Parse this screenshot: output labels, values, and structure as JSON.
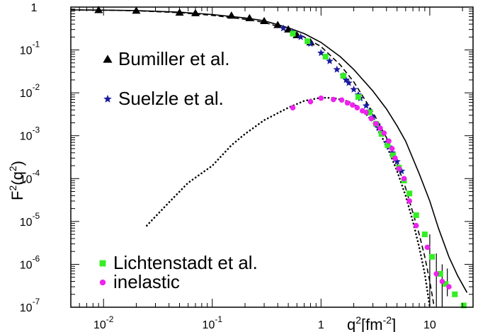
{
  "chart_data": {
    "type": "scatter",
    "x_scale": "log",
    "y_scale": "log",
    "xlim": [
      0.005,
      25
    ],
    "ylim": [
      1e-07,
      1
    ],
    "xlabel": {
      "base": "q",
      "sup": "2",
      "unit": "[fm",
      "unit_sup": "-2",
      "unit_end": "]"
    },
    "ylabel": {
      "pre": "F",
      "sup1": "2",
      "mid": "(q",
      "sup2": "2",
      "end": ")"
    },
    "x_ticks": [
      {
        "value": 0.01,
        "base": "10",
        "exp": "-2"
      },
      {
        "value": 0.1,
        "base": "10",
        "exp": "-1"
      },
      {
        "value": 1,
        "base": "1",
        "exp": ""
      },
      {
        "value": 10,
        "base": "10",
        "exp": ""
      }
    ],
    "y_ticks": [
      {
        "value": 1,
        "base": "1",
        "exp": ""
      },
      {
        "value": 0.1,
        "base": "10",
        "exp": "-1"
      },
      {
        "value": 0.01,
        "base": "10",
        "exp": "-2"
      },
      {
        "value": 0.001,
        "base": "10",
        "exp": "-3"
      },
      {
        "value": 0.0001,
        "base": "10",
        "exp": "-4"
      },
      {
        "value": 1e-05,
        "base": "10",
        "exp": "-5"
      },
      {
        "value": 1e-06,
        "base": "10",
        "exp": "-6"
      },
      {
        "value": 1e-07,
        "base": "10",
        "exp": "-7"
      }
    ],
    "legend": [
      {
        "label": "Bumiller et al.",
        "marker": "triangle",
        "color": "#000000"
      },
      {
        "label": "Suelzle et al.",
        "marker": "star",
        "color": "#1a1aa0"
      },
      {
        "label": "Lichtenstadt et al.",
        "marker": "square",
        "color": "#33ee22"
      },
      {
        "label": "inelastic",
        "marker": "circle",
        "color": "#ee22ee"
      }
    ],
    "series": [
      {
        "name": "Bumiller et al.",
        "marker": "triangle",
        "color": "#000000",
        "points": [
          [
            0.009,
            0.85
          ],
          [
            0.02,
            0.82
          ],
          [
            0.05,
            0.74
          ],
          [
            0.07,
            0.72
          ],
          [
            0.15,
            0.63
          ],
          [
            0.22,
            0.55
          ],
          [
            0.3,
            0.47
          ],
          [
            0.4,
            0.38
          ],
          [
            0.5,
            0.3
          ],
          [
            0.6,
            0.22
          ],
          [
            0.8,
            0.15
          ]
        ]
      },
      {
        "name": "Suelzle et al.",
        "marker": "star",
        "color": "#1a1aa0",
        "points": [
          [
            0.45,
            0.32
          ],
          [
            0.55,
            0.26
          ],
          [
            0.65,
            0.2
          ],
          [
            0.8,
            0.14
          ],
          [
            1.0,
            0.085
          ],
          [
            1.2,
            0.055
          ],
          [
            1.4,
            0.035
          ],
          [
            1.6,
            0.025
          ],
          [
            1.8,
            0.017
          ],
          [
            2.0,
            0.012
          ],
          [
            2.3,
            0.0075
          ],
          [
            2.6,
            0.005
          ],
          [
            3.0,
            0.0027
          ],
          [
            3.3,
            0.0018
          ],
          [
            3.6,
            0.0012
          ],
          [
            4.0,
            0.0007
          ],
          [
            4.5,
            0.0004
          ],
          [
            5.0,
            0.00025
          ],
          [
            5.5,
            0.00015
          ],
          [
            1.7,
            0.02
          ],
          [
            2.2,
            0.009
          ],
          [
            2.8,
            0.0038
          ],
          [
            3.4,
            0.0015
          ],
          [
            4.2,
            0.00055
          ]
        ]
      },
      {
        "name": "Lichtenstadt et al.",
        "marker": "square",
        "color": "#33ee22",
        "points": [
          [
            0.55,
            0.24
          ],
          [
            0.75,
            0.16
          ],
          [
            1.1,
            0.07
          ],
          [
            1.6,
            0.025
          ],
          [
            2.2,
            0.008
          ],
          [
            2.8,
            0.0035
          ],
          [
            3.2,
            0.0019
          ],
          [
            3.6,
            0.0011
          ],
          [
            4.1,
            0.0006
          ],
          [
            4.6,
            0.00035
          ],
          [
            5.2,
            0.00018
          ],
          [
            5.8,
            9e-05
          ],
          [
            6.5,
            4.5e-05
          ],
          [
            7.5,
            1.4e-05
          ],
          [
            9.0,
            5e-06
          ],
          [
            10.5,
            1.5e-06
          ],
          [
            12.5,
            6e-07
          ],
          [
            14.0,
            3.5e-07
          ],
          [
            17.0,
            2e-07
          ],
          [
            20.5,
            1.1e-07
          ]
        ]
      },
      {
        "name": "inelastic",
        "marker": "circle",
        "color": "#ee22ee",
        "points": [
          [
            0.55,
            0.0045
          ],
          [
            0.8,
            0.0062
          ],
          [
            1.0,
            0.0075
          ],
          [
            1.3,
            0.007
          ],
          [
            1.55,
            0.0068
          ],
          [
            1.75,
            0.0058
          ],
          [
            1.95,
            0.0052
          ],
          [
            2.15,
            0.0045
          ],
          [
            2.4,
            0.0038
          ],
          [
            2.6,
            0.0035
          ],
          [
            2.9,
            0.0025
          ],
          [
            3.2,
            0.0019
          ],
          [
            3.5,
            0.0015
          ],
          [
            3.8,
            0.00115
          ],
          [
            4.2,
            0.00075
          ],
          [
            4.5,
            0.0005
          ],
          [
            4.8,
            0.0003
          ],
          [
            5.2,
            0.00017
          ],
          [
            5.8,
            0.0001
          ],
          [
            6.5,
            3e-05
          ],
          [
            7.5,
            8e-06
          ],
          [
            9.5,
            2.5e-06
          ],
          [
            11.5,
            6e-07
          ],
          [
            13.0,
            4e-07
          ],
          [
            15.0,
            3e-07
          ]
        ]
      }
    ],
    "curves": [
      {
        "style": "solid",
        "points": [
          [
            0.005,
            0.86
          ],
          [
            0.01,
            0.85
          ],
          [
            0.02,
            0.83
          ],
          [
            0.05,
            0.76
          ],
          [
            0.1,
            0.67
          ],
          [
            0.2,
            0.56
          ],
          [
            0.3,
            0.48
          ],
          [
            0.5,
            0.33
          ],
          [
            0.7,
            0.24
          ],
          [
            1.0,
            0.15
          ],
          [
            1.5,
            0.07
          ],
          [
            2.0,
            0.035
          ],
          [
            3.0,
            0.011
          ],
          [
            4.0,
            0.0042
          ],
          [
            5.0,
            0.0017
          ],
          [
            6.0,
            0.00075
          ],
          [
            8.0,
            0.00013
          ],
          [
            10.0,
            3e-05
          ],
          [
            12.0,
            7e-06
          ],
          [
            15.0,
            1.5e-06
          ],
          [
            18.0,
            5.5e-07
          ],
          [
            22.0,
            2.2e-07
          ]
        ]
      },
      {
        "style": "dashed",
        "points": [
          [
            0.005,
            0.86
          ],
          [
            0.01,
            0.85
          ],
          [
            0.02,
            0.82
          ],
          [
            0.05,
            0.74
          ],
          [
            0.1,
            0.64
          ],
          [
            0.2,
            0.52
          ],
          [
            0.3,
            0.44
          ],
          [
            0.5,
            0.3
          ],
          [
            0.7,
            0.2
          ],
          [
            1.0,
            0.12
          ],
          [
            1.5,
            0.045
          ],
          [
            2.0,
            0.018
          ],
          [
            3.0,
            0.0035
          ],
          [
            4.0,
            0.0009
          ],
          [
            5.0,
            0.00022
          ],
          [
            6.0,
            6e-05
          ],
          [
            7.0,
            1.6e-05
          ],
          [
            8.0,
            5e-06
          ],
          [
            9.0,
            1.5e-06
          ],
          [
            10.0,
            4e-07
          ],
          [
            11.0,
            1e-07
          ]
        ]
      },
      {
        "style": "dotted",
        "points": [
          [
            0.025,
            8e-06
          ],
          [
            0.04,
            2.8e-05
          ],
          [
            0.06,
            8e-05
          ],
          [
            0.1,
            0.0002
          ],
          [
            0.15,
            0.0006
          ],
          [
            0.2,
            0.0011
          ],
          [
            0.3,
            0.0023
          ],
          [
            0.5,
            0.0045
          ],
          [
            0.7,
            0.0065
          ],
          [
            1.0,
            0.0077
          ],
          [
            1.3,
            0.0076
          ],
          [
            1.7,
            0.0065
          ],
          [
            2.0,
            0.0055
          ],
          [
            2.5,
            0.0036
          ],
          [
            3.0,
            0.0021
          ],
          [
            4.0,
            0.0006
          ],
          [
            5.0,
            0.00015
          ],
          [
            6.0,
            4e-05
          ],
          [
            7.0,
            1e-05
          ],
          [
            8.0,
            2.5e-06
          ],
          [
            9.0,
            6e-07
          ],
          [
            10.0,
            1e-07
          ]
        ]
      }
    ],
    "error_bars": [
      {
        "x": 10.0,
        "y1": 5e-06,
        "y2": 1e-07
      },
      {
        "x": 11.5,
        "y1": 1.8e-06,
        "y2": 1e-07
      },
      {
        "x": 13.0,
        "y1": 1e-06,
        "y2": 1e-07
      },
      {
        "x": 14.5,
        "y1": 8e-07,
        "y2": 1.8e-07
      }
    ],
    "grid": false
  }
}
